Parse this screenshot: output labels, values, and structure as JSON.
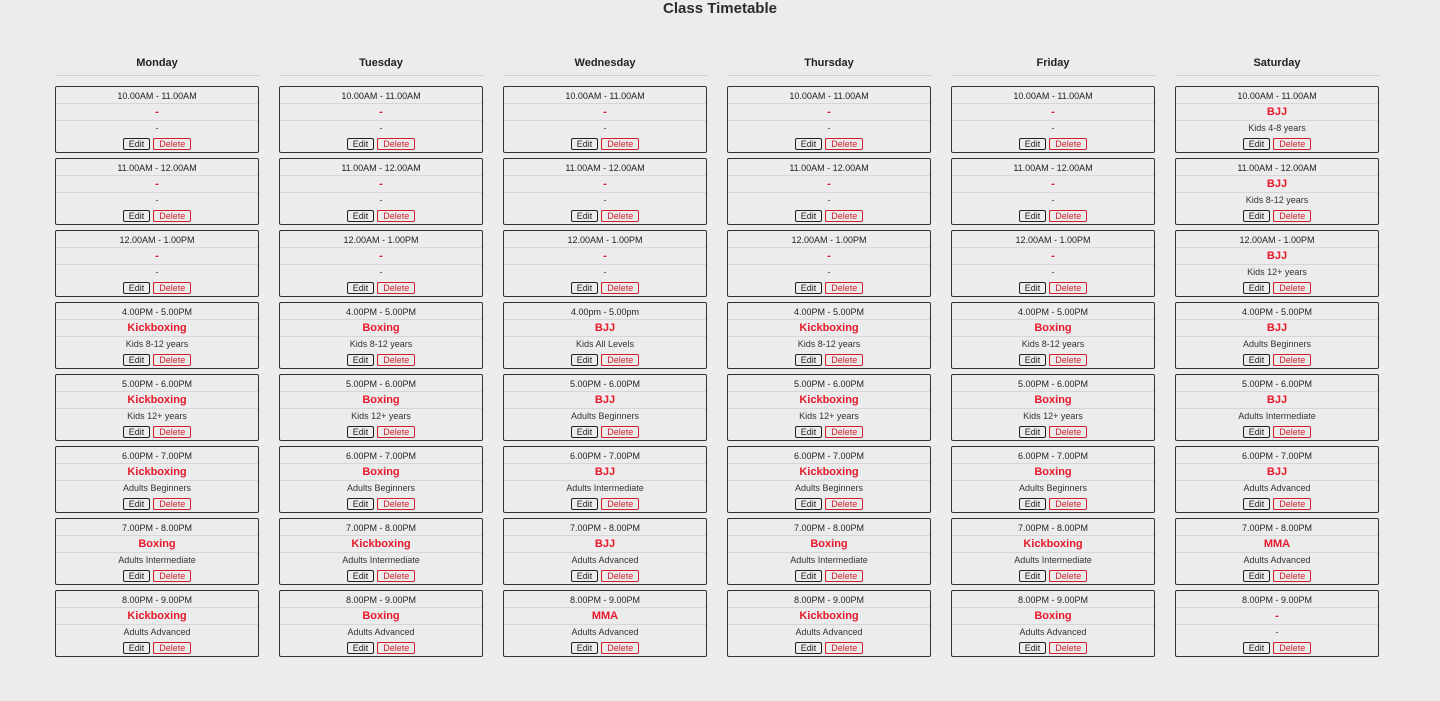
{
  "page": {
    "title": "Class Timetable",
    "edit_label": "Edit",
    "delete_label": "Delete"
  },
  "colors": {
    "accent": "#e8192c",
    "delete": "#d01f2e",
    "background": "#ececec"
  },
  "days": [
    {
      "name": "Monday",
      "slots": [
        {
          "time": "10.00AM - 11.00AM",
          "class": "-",
          "level": "-"
        },
        {
          "time": "11.00AM - 12.00AM",
          "class": "-",
          "level": "-"
        },
        {
          "time": "12.00AM - 1.00PM",
          "class": "-",
          "level": "-"
        },
        {
          "time": "4.00PM - 5.00PM",
          "class": "Kickboxing",
          "level": "Kids 8-12 years"
        },
        {
          "time": "5.00PM - 6.00PM",
          "class": "Kickboxing",
          "level": "Kids 12+ years"
        },
        {
          "time": "6.00PM - 7.00PM",
          "class": "Kickboxing",
          "level": "Adults Beginners"
        },
        {
          "time": "7.00PM - 8.00PM",
          "class": "Boxing",
          "level": "Adults Intermediate"
        },
        {
          "time": "8.00PM - 9.00PM",
          "class": "Kickboxing",
          "level": "Adults Advanced"
        }
      ]
    },
    {
      "name": "Tuesday",
      "slots": [
        {
          "time": "10.00AM - 11.00AM",
          "class": "-",
          "level": "-"
        },
        {
          "time": "11.00AM - 12.00AM",
          "class": "-",
          "level": "-"
        },
        {
          "time": "12.00AM - 1.00PM",
          "class": "-",
          "level": "-"
        },
        {
          "time": "4.00PM - 5.00PM",
          "class": "Boxing",
          "level": "Kids 8-12 years"
        },
        {
          "time": "5.00PM - 6.00PM",
          "class": "Boxing",
          "level": "Kids 12+ years"
        },
        {
          "time": "6.00PM - 7.00PM",
          "class": "Boxing",
          "level": "Adults Beginners"
        },
        {
          "time": "7.00PM - 8.00PM",
          "class": "Kickboxing",
          "level": "Adults Intermediate"
        },
        {
          "time": "8.00PM - 9.00PM",
          "class": "Boxing",
          "level": "Adults Advanced"
        }
      ]
    },
    {
      "name": "Wednesday",
      "slots": [
        {
          "time": "10.00AM - 11.00AM",
          "class": "-",
          "level": "-"
        },
        {
          "time": "11.00AM - 12.00AM",
          "class": "-",
          "level": "-"
        },
        {
          "time": "12.00AM - 1.00PM",
          "class": "-",
          "level": "-"
        },
        {
          "time": "4.00pm - 5.00pm",
          "class": "BJJ",
          "level": "Kids All Levels"
        },
        {
          "time": "5.00PM - 6.00PM",
          "class": "BJJ",
          "level": "Adults Beginners"
        },
        {
          "time": "6.00PM - 7.00PM",
          "class": "BJJ",
          "level": "Adults Intermediate"
        },
        {
          "time": "7.00PM - 8.00PM",
          "class": "BJJ",
          "level": "Adults Advanced"
        },
        {
          "time": "8.00PM - 9.00PM",
          "class": "MMA",
          "level": "Adults Advanced"
        }
      ]
    },
    {
      "name": "Thursday",
      "slots": [
        {
          "time": "10.00AM - 11.00AM",
          "class": "-",
          "level": "-"
        },
        {
          "time": "11.00AM - 12.00AM",
          "class": "-",
          "level": "-"
        },
        {
          "time": "12.00AM - 1.00PM",
          "class": "-",
          "level": "-"
        },
        {
          "time": "4.00PM - 5.00PM",
          "class": "Kickboxing",
          "level": "Kids 8-12 years"
        },
        {
          "time": "5.00PM - 6.00PM",
          "class": "Kickboxing",
          "level": "Kids 12+ years"
        },
        {
          "time": "6.00PM - 7.00PM",
          "class": "Kickboxing",
          "level": "Adults Beginners"
        },
        {
          "time": "7.00PM - 8.00PM",
          "class": "Boxing",
          "level": "Adults Intermediate"
        },
        {
          "time": "8.00PM - 9.00PM",
          "class": "Kickboxing",
          "level": "Adults Advanced"
        }
      ]
    },
    {
      "name": "Friday",
      "slots": [
        {
          "time": "10.00AM - 11.00AM",
          "class": "-",
          "level": "-"
        },
        {
          "time": "11.00AM - 12.00AM",
          "class": "-",
          "level": "-"
        },
        {
          "time": "12.00AM - 1.00PM",
          "class": "-",
          "level": "-"
        },
        {
          "time": "4.00PM - 5.00PM",
          "class": "Boxing",
          "level": "Kids 8-12 years"
        },
        {
          "time": "5.00PM - 6.00PM",
          "class": "Boxing",
          "level": "Kids 12+ years"
        },
        {
          "time": "6.00PM - 7.00PM",
          "class": "Boxing",
          "level": "Adults Beginners"
        },
        {
          "time": "7.00PM - 8.00PM",
          "class": "Kickboxing",
          "level": "Adults Intermediate"
        },
        {
          "time": "8.00PM - 9.00PM",
          "class": "Boxing",
          "level": "Adults Advanced"
        }
      ]
    },
    {
      "name": "Saturday",
      "slots": [
        {
          "time": "10.00AM - 11.00AM",
          "class": "BJJ",
          "level": "Kids 4-8 years"
        },
        {
          "time": "11.00AM - 12.00AM",
          "class": "BJJ",
          "level": "Kids 8-12 years"
        },
        {
          "time": "12.00AM - 1.00PM",
          "class": "BJJ",
          "level": "Kids 12+ years"
        },
        {
          "time": "4.00PM - 5.00PM",
          "class": "BJJ",
          "level": "Adults Beginners"
        },
        {
          "time": "5.00PM - 6.00PM",
          "class": "BJJ",
          "level": "Adults Intermediate"
        },
        {
          "time": "6.00PM - 7.00PM",
          "class": "BJJ",
          "level": "Adults Advanced"
        },
        {
          "time": "7.00PM - 8.00PM",
          "class": "MMA",
          "level": "Adults Advanced"
        },
        {
          "time": "8.00PM - 9.00PM",
          "class": "-",
          "level": "-"
        }
      ]
    }
  ]
}
